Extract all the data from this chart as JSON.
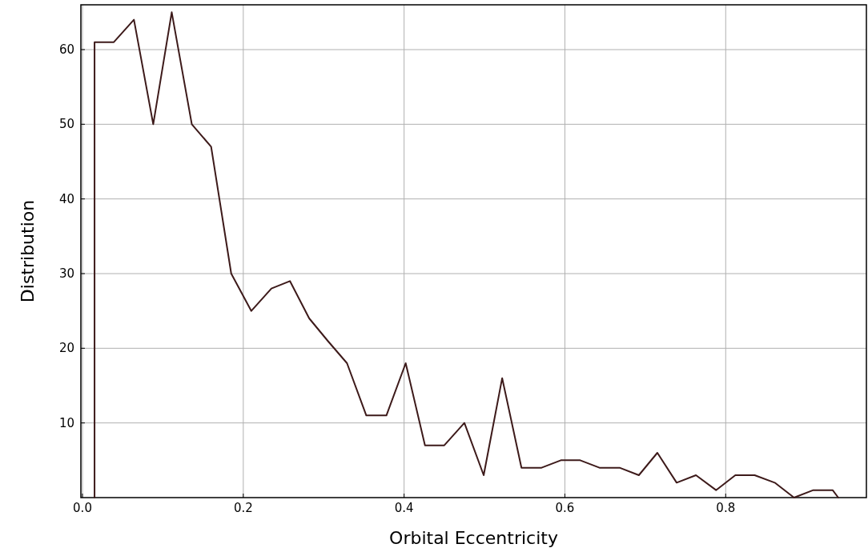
{
  "chart_data": {
    "type": "line",
    "xlabel": "Orbital Eccentricity",
    "ylabel": "Distribution",
    "xlim": [
      -0.002,
      0.975
    ],
    "ylim": [
      0,
      66
    ],
    "xticks": [
      {
        "value": 0,
        "label": "0.0"
      },
      {
        "value": 0.2,
        "label": "0.2"
      },
      {
        "value": 0.4,
        "label": "0.4"
      },
      {
        "value": 0.6,
        "label": "0.6"
      },
      {
        "value": 0.8,
        "label": "0.8"
      }
    ],
    "yticks": [
      10,
      20,
      30,
      40,
      50,
      60
    ],
    "grid": true,
    "marker": "none",
    "line_style": "solid",
    "series": [
      {
        "color": "#3d1a1a",
        "x": [
          0.015,
          0.015,
          0.039,
          0.064,
          0.088,
          0.111,
          0.136,
          0.16,
          0.185,
          0.21,
          0.235,
          0.258,
          0.282,
          0.305,
          0.329,
          0.353,
          0.378,
          0.402,
          0.426,
          0.45,
          0.475,
          0.499,
          0.522,
          0.546,
          0.571,
          0.595,
          0.619,
          0.643,
          0.668,
          0.692,
          0.715,
          0.739,
          0.763,
          0.788,
          0.812,
          0.836,
          0.861,
          0.885,
          0.909,
          0.933,
          0.94
        ],
        "values": [
          0,
          61,
          61,
          64,
          50,
          65,
          50,
          47,
          30,
          25,
          28,
          29,
          24,
          21,
          18,
          11,
          11,
          18,
          7,
          7,
          10,
          3,
          16,
          4,
          4,
          5,
          5,
          4,
          4,
          3,
          6,
          2,
          3,
          1,
          3,
          3,
          2,
          0,
          1,
          1,
          0
        ]
      }
    ]
  }
}
